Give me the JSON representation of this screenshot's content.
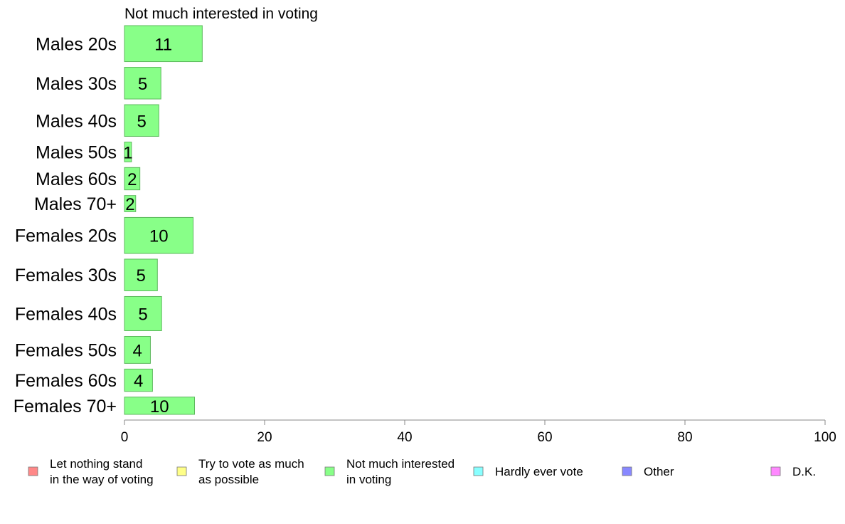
{
  "chart_data": {
    "type": "bar",
    "orientation": "horizontal",
    "title": "Not much interested in voting",
    "categories": [
      "Males 20s",
      "Males 30s",
      "Males 40s",
      "Males 50s",
      "Males 60s",
      "Males 70+",
      "Females 20s",
      "Females 30s",
      "Females 40s",
      "Females 50s",
      "Females 60s",
      "Females 70+"
    ],
    "values": [
      11.1,
      5.2,
      4.9,
      1.0,
      2.2,
      1.6,
      9.8,
      4.7,
      5.3,
      3.7,
      4.0,
      10.0
    ],
    "value_labels": [
      "11",
      "5",
      "5",
      "1",
      "2",
      "2",
      "10",
      "5",
      "5",
      "4",
      "4",
      "10"
    ],
    "relative_sample_sizes": [
      1.0,
      0.88,
      0.88,
      0.55,
      0.62,
      0.45,
      1.0,
      0.88,
      0.95,
      0.75,
      0.62,
      0.48
    ],
    "xlim": [
      0,
      100
    ],
    "xticks": [
      0,
      20,
      40,
      60,
      80,
      100
    ],
    "xtick_labels": [
      "0",
      "20",
      "40",
      "60",
      "80",
      "100"
    ],
    "xlabel": "",
    "ylabel": "",
    "bar_color": "#88ff88",
    "bar_edge_color": "#5cb85c",
    "grid": false,
    "legend": {
      "placement": "bottom",
      "items": [
        {
          "lines": [
            "Let nothing stand",
            "in the way of voting"
          ],
          "color": "#ff8888"
        },
        {
          "lines": [
            "Try to vote as much",
            "as possible"
          ],
          "color": "#ffff88"
        },
        {
          "lines": [
            "Not much interested",
            "in voting"
          ],
          "color": "#88ff88"
        },
        {
          "lines": [
            "Hardly ever vote"
          ],
          "color": "#88ffff"
        },
        {
          "lines": [
            "Other"
          ],
          "color": "#8888ff"
        },
        {
          "lines": [
            "D.K."
          ],
          "color": "#ff88ff"
        }
      ]
    }
  }
}
